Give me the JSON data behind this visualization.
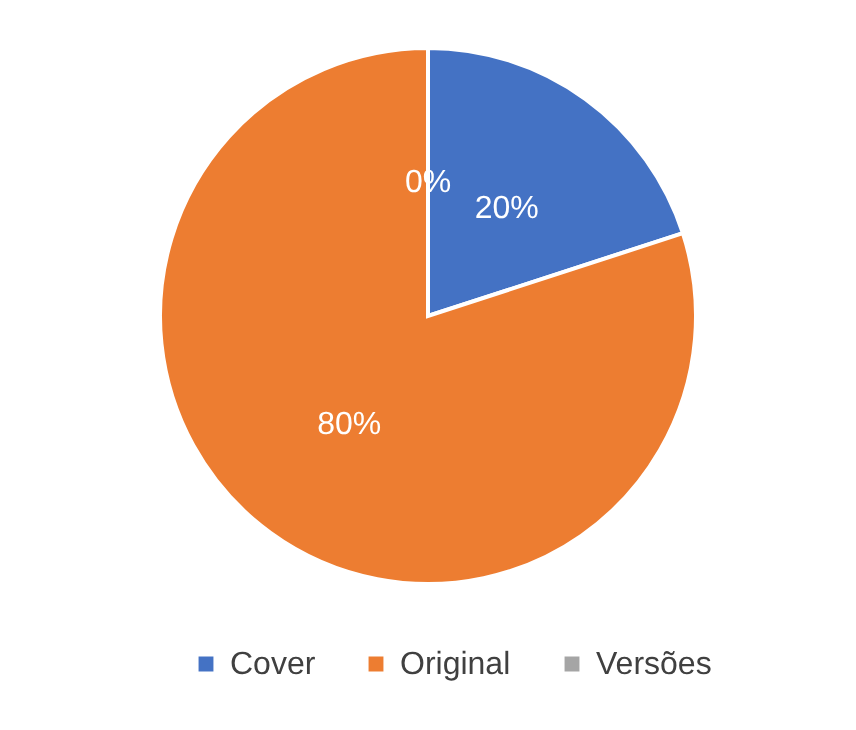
{
  "chart_data": {
    "type": "pie",
    "categories": [
      "Cover",
      "Original",
      "Versões"
    ],
    "values": [
      20,
      80,
      0
    ],
    "colors": [
      "#4472c4",
      "#ed7d31",
      "#a5a5a5"
    ],
    "value_labels": [
      "20%",
      "80%",
      "0%"
    ],
    "legend": "bottom"
  }
}
